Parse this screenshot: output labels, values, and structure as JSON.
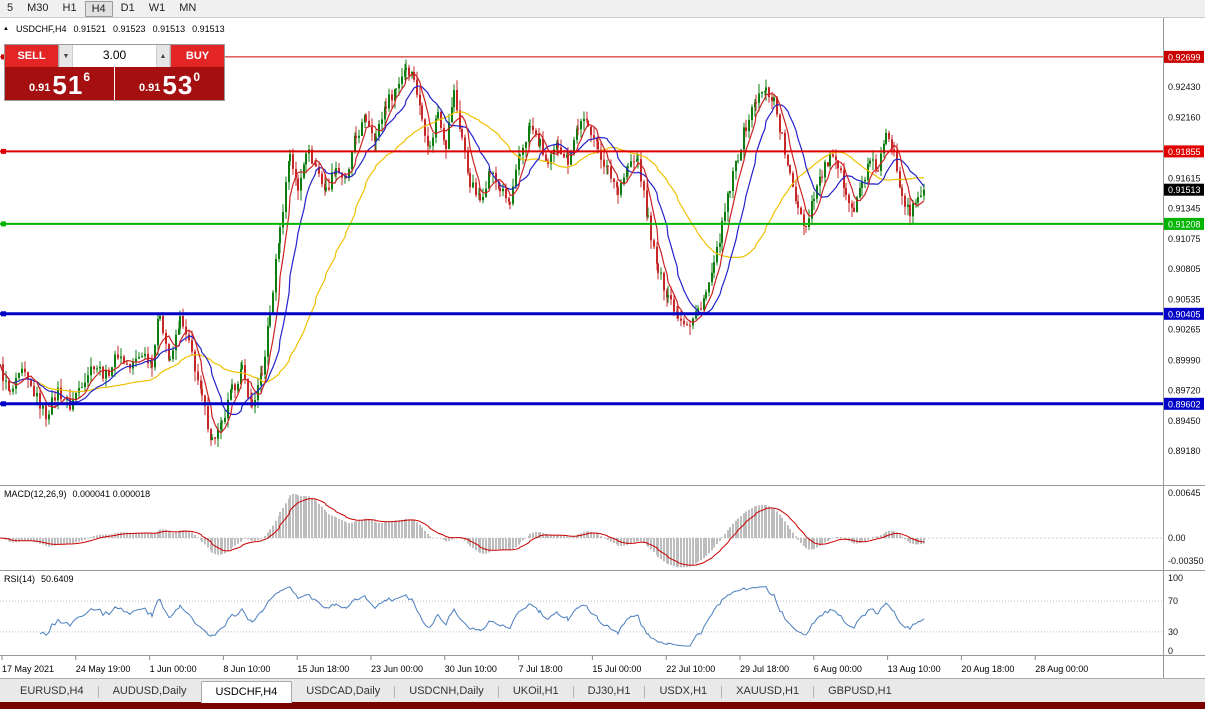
{
  "icons": {
    "chart_marker": "▲",
    "volume_down": "▼",
    "volume_up": "▲"
  },
  "toolbar": {
    "timeframes": [
      "5",
      "M30",
      "H1",
      "H4",
      "D1",
      "W1",
      "MN"
    ],
    "active": "H4"
  },
  "chart": {
    "symbol_title": "USDCHF,H4",
    "ohlc": {
      "open": "0.91521",
      "high": "0.91523",
      "low": "0.91513",
      "close": "0.91513"
    }
  },
  "trade_panel": {
    "sell_label": "SELL",
    "buy_label": "BUY",
    "volume": "3.00",
    "sell_price": {
      "prefix": "0.91",
      "big": "51",
      "pip": "6"
    },
    "buy_price": {
      "prefix": "0.91",
      "big": "53",
      "pip": "0"
    }
  },
  "price_axis": {
    "labels": [
      "0.92430",
      "0.92160",
      "0.91615",
      "0.91345",
      "0.91075",
      "0.90805",
      "0.90535",
      "0.90265",
      "0.89990",
      "0.89720",
      "0.89450",
      "0.89180"
    ],
    "current_price": {
      "value": "0.91513",
      "bg": "#000000"
    }
  },
  "levels": [
    {
      "price": "0.92699",
      "color": "#cc0000",
      "width": 1
    },
    {
      "price": "0.91855",
      "color": "#e00000",
      "width": 2
    },
    {
      "price": "0.91208",
      "color": "#00b400",
      "width": 2
    },
    {
      "price": "0.90405",
      "color": "#0000c8",
      "width": 3
    },
    {
      "price": "0.89602",
      "color": "#0000c8",
      "width": 3
    }
  ],
  "chart_data": {
    "type": "candlestick",
    "symbol": "USDCHF",
    "timeframe": "H4",
    "visible_range": {
      "from": "17 May 2021",
      "to": "28 Aug 2021"
    },
    "candle_up_color": "#0e7d10",
    "candle_down_color": "#c62828",
    "moving_averages": [
      {
        "period": 40,
        "color": "#f0c000"
      },
      {
        "period": 14,
        "color": "#2222cc"
      },
      {
        "period": 6,
        "color": "#cc2222"
      }
    ],
    "price_path_keypoints": [
      [
        0,
        0.8992
      ],
      [
        10,
        0.8968
      ],
      [
        22,
        0.8988
      ],
      [
        34,
        0.897
      ],
      [
        46,
        0.895
      ],
      [
        58,
        0.8972
      ],
      [
        70,
        0.8958
      ],
      [
        82,
        0.898
      ],
      [
        94,
        0.8996
      ],
      [
        106,
        0.8985
      ],
      [
        118,
        0.9005
      ],
      [
        130,
        0.8992
      ],
      [
        142,
        0.9006
      ],
      [
        152,
        0.8998
      ],
      [
        160,
        0.9042
      ],
      [
        170,
        0.8996
      ],
      [
        180,
        0.9035
      ],
      [
        192,
        0.9005
      ],
      [
        202,
        0.8965
      ],
      [
        212,
        0.8928
      ],
      [
        222,
        0.894
      ],
      [
        232,
        0.8972
      ],
      [
        242,
        0.899
      ],
      [
        252,
        0.8958
      ],
      [
        262,
        0.8985
      ],
      [
        270,
        0.904
      ],
      [
        280,
        0.9115
      ],
      [
        290,
        0.9185
      ],
      [
        298,
        0.915
      ],
      [
        306,
        0.9188
      ],
      [
        316,
        0.9172
      ],
      [
        326,
        0.915
      ],
      [
        336,
        0.9172
      ],
      [
        346,
        0.9158
      ],
      [
        356,
        0.9198
      ],
      [
        366,
        0.9215
      ],
      [
        376,
        0.9198
      ],
      [
        386,
        0.9228
      ],
      [
        396,
        0.9242
      ],
      [
        406,
        0.9262
      ],
      [
        414,
        0.9252
      ],
      [
        422,
        0.9215
      ],
      [
        430,
        0.9188
      ],
      [
        438,
        0.9222
      ],
      [
        446,
        0.9192
      ],
      [
        454,
        0.9238
      ],
      [
        462,
        0.9198
      ],
      [
        470,
        0.9158
      ],
      [
        480,
        0.9142
      ],
      [
        490,
        0.9168
      ],
      [
        500,
        0.9152
      ],
      [
        510,
        0.9138
      ],
      [
        520,
        0.9182
      ],
      [
        530,
        0.9208
      ],
      [
        540,
        0.9192
      ],
      [
        548,
        0.9172
      ],
      [
        558,
        0.9192
      ],
      [
        568,
        0.9178
      ],
      [
        578,
        0.9208
      ],
      [
        588,
        0.9212
      ],
      [
        598,
        0.9188
      ],
      [
        608,
        0.9168
      ],
      [
        618,
        0.9152
      ],
      [
        628,
        0.9172
      ],
      [
        638,
        0.9178
      ],
      [
        648,
        0.9125
      ],
      [
        658,
        0.9078
      ],
      [
        668,
        0.9058
      ],
      [
        678,
        0.904
      ],
      [
        690,
        0.903
      ],
      [
        698,
        0.9044
      ],
      [
        706,
        0.9058
      ],
      [
        714,
        0.9082
      ],
      [
        722,
        0.9118
      ],
      [
        730,
        0.9152
      ],
      [
        738,
        0.9182
      ],
      [
        746,
        0.9208
      ],
      [
        756,
        0.9232
      ],
      [
        766,
        0.924
      ],
      [
        774,
        0.9232
      ],
      [
        782,
        0.9198
      ],
      [
        790,
        0.9162
      ],
      [
        798,
        0.9138
      ],
      [
        806,
        0.9118
      ],
      [
        814,
        0.9148
      ],
      [
        822,
        0.9165
      ],
      [
        830,
        0.918
      ],
      [
        838,
        0.917
      ],
      [
        846,
        0.9152
      ],
      [
        854,
        0.9132
      ],
      [
        862,
        0.9158
      ],
      [
        870,
        0.9175
      ],
      [
        878,
        0.917
      ],
      [
        886,
        0.9198
      ],
      [
        894,
        0.9188
      ],
      [
        902,
        0.9148
      ],
      [
        910,
        0.9128
      ],
      [
        918,
        0.9146
      ],
      [
        924,
        0.91513
      ]
    ]
  },
  "macd": {
    "label": "MACD(12,26,9)",
    "values": "0.000041 0.000018",
    "axis_labels": [
      "0.00645",
      "0.00",
      "-0.00350"
    ],
    "histogram_color": "#bdbdbd",
    "signal_color": "#cc0000"
  },
  "rsi": {
    "label": "RSI(14)",
    "value": "50.6409",
    "axis_labels": [
      "100",
      "70",
      "30",
      "0"
    ],
    "levels": [
      70,
      30
    ],
    "line_color": "#4a7ebf"
  },
  "time_axis": {
    "labels": [
      "17 May 2021",
      "24 May 19:00",
      "1 Jun 00:00",
      "8 Jun 10:00",
      "15 Jun 18:00",
      "23 Jun 00:00",
      "30 Jun 10:00",
      "7 Jul 18:00",
      "15 Jul 00:00",
      "22 Jul 10:00",
      "29 Jul 18:00",
      "6 Aug 00:00",
      "13 Aug 10:00",
      "20 Aug 18:00",
      "28 Aug 00:00"
    ]
  },
  "tabs": {
    "items": [
      "EURUSD,H4",
      "AUDUSD,Daily",
      "USDCHF,H4",
      "USDCAD,Daily",
      "USDCNH,Daily",
      "UKOil,H1",
      "DJ30,H1",
      "USDX,H1",
      "XAUUSD,H1",
      "GBPUSD,H1"
    ],
    "active_index": 2
  }
}
